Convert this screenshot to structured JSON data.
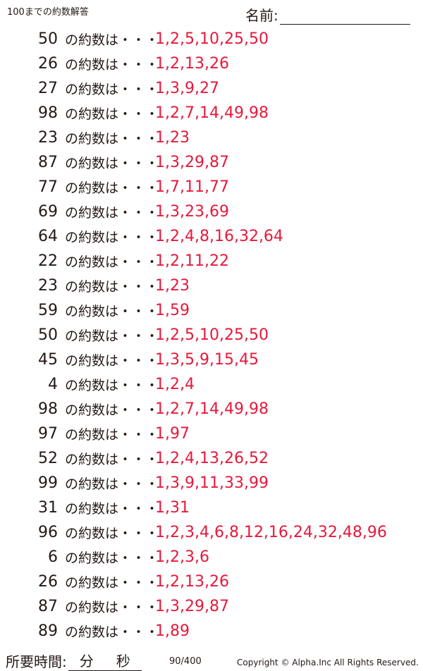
{
  "header": {
    "title": "100までの約数解答",
    "name_label": "名前:"
  },
  "question_suffix": "の約数は・・・",
  "rows": [
    {
      "n": "50",
      "a": "1,2,5,10,25,50"
    },
    {
      "n": "26",
      "a": "1,2,13,26"
    },
    {
      "n": "27",
      "a": "1,3,9,27"
    },
    {
      "n": "98",
      "a": "1,2,7,14,49,98"
    },
    {
      "n": "23",
      "a": "1,23"
    },
    {
      "n": "87",
      "a": "1,3,29,87"
    },
    {
      "n": "77",
      "a": "1,7,11,77"
    },
    {
      "n": "69",
      "a": "1,3,23,69"
    },
    {
      "n": "64",
      "a": "1,2,4,8,16,32,64"
    },
    {
      "n": "22",
      "a": "1,2,11,22"
    },
    {
      "n": "23",
      "a": "1,23"
    },
    {
      "n": "59",
      "a": "1,59"
    },
    {
      "n": "50",
      "a": "1,2,5,10,25,50"
    },
    {
      "n": "45",
      "a": "1,3,5,9,15,45"
    },
    {
      "n": "4",
      "a": "1,2,4"
    },
    {
      "n": "98",
      "a": "1,2,7,14,49,98"
    },
    {
      "n": "97",
      "a": "1,97"
    },
    {
      "n": "52",
      "a": "1,2,4,13,26,52"
    },
    {
      "n": "99",
      "a": "1,3,9,11,33,99"
    },
    {
      "n": "31",
      "a": "1,31"
    },
    {
      "n": "96",
      "a": "1,2,3,4,6,8,12,16,24,32,48,96"
    },
    {
      "n": "6",
      "a": "1,2,3,6"
    },
    {
      "n": "26",
      "a": "1,2,13,26"
    },
    {
      "n": "87",
      "a": "1,3,29,87"
    },
    {
      "n": "89",
      "a": "1,89"
    }
  ],
  "footer": {
    "time_label": "所要時間:",
    "minutes": "分",
    "seconds": "秒",
    "page": "90/400",
    "copyright": "Copyright ©  Alpha.Inc All Rights Reserved."
  },
  "colors": {
    "answer": "#e6193b",
    "text": "#231815"
  }
}
